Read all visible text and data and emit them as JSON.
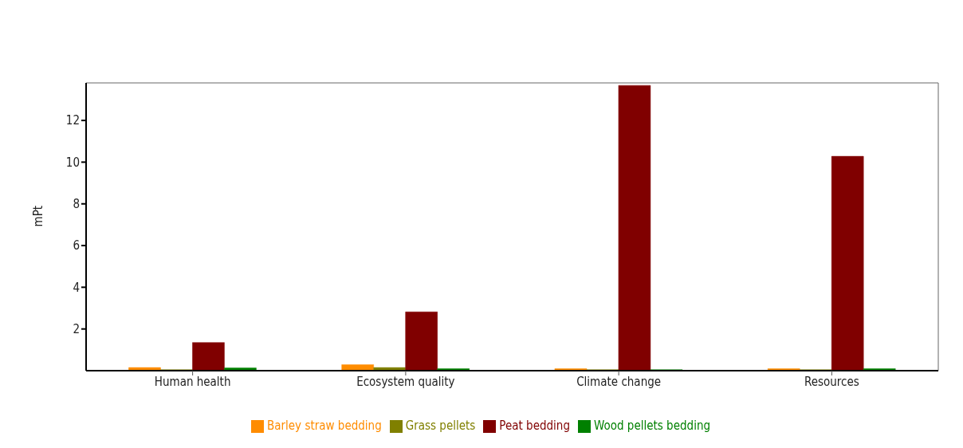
{
  "chart_data": {
    "type": "bar",
    "ylabel": "mPt",
    "categories": [
      "Human health",
      "Ecosystem quality",
      "Climate change",
      "Resources"
    ],
    "series": [
      {
        "name": "Barley straw bedding",
        "color": "#ff8c00",
        "values": [
          0.15,
          0.29,
          0.1,
          0.1
        ]
      },
      {
        "name": "Grass pellets",
        "color": "#808000",
        "values": [
          0.05,
          0.15,
          0.05,
          0.05
        ]
      },
      {
        "name": "Peat bedding",
        "color": "#800000",
        "values": [
          1.35,
          2.82,
          13.68,
          10.28
        ]
      },
      {
        "name": "Wood pellets bedding",
        "color": "#008000",
        "values": [
          0.13,
          0.1,
          0.05,
          0.1
        ]
      }
    ],
    "ylim": [
      0,
      13.8
    ],
    "yticks": [
      2,
      4,
      6,
      8,
      10,
      12
    ],
    "grid": false,
    "legend": "bottom"
  }
}
